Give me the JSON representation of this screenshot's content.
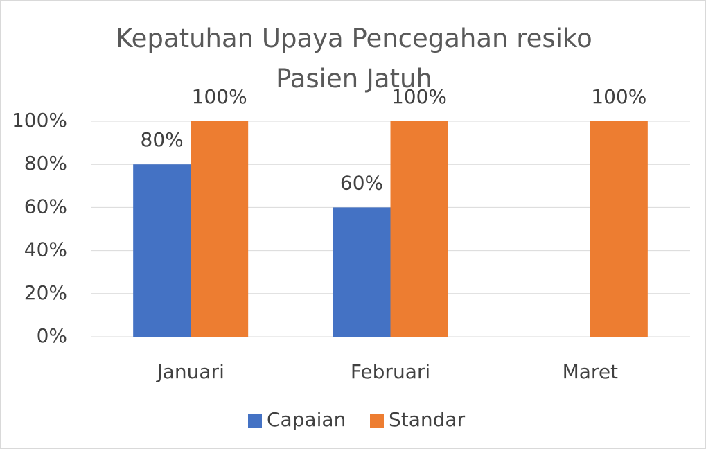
{
  "chart_data": {
    "type": "bar",
    "title": "Kepatuhan Upaya Pencegahan resiko Pasien Jatuh",
    "categories": [
      "Januari",
      "Februari",
      "Maret"
    ],
    "series": [
      {
        "name": "Capaian",
        "color": "#4472c4",
        "values": [
          80,
          60,
          null
        ],
        "value_labels": [
          "80%",
          "60%",
          null
        ]
      },
      {
        "name": "Standar",
        "color": "#ed7d31",
        "values": [
          100,
          100,
          100
        ],
        "value_labels": [
          "100%",
          "100%",
          "100%"
        ]
      }
    ],
    "ylim": [
      0,
      100
    ],
    "yticks": [
      {
        "value": 0,
        "label": "0%"
      },
      {
        "value": 20,
        "label": "20%"
      },
      {
        "value": 40,
        "label": "40%"
      },
      {
        "value": 60,
        "label": "60%"
      },
      {
        "value": 80,
        "label": "80%"
      },
      {
        "value": 100,
        "label": "100%"
      }
    ],
    "grid": true,
    "legend": "bottom"
  }
}
